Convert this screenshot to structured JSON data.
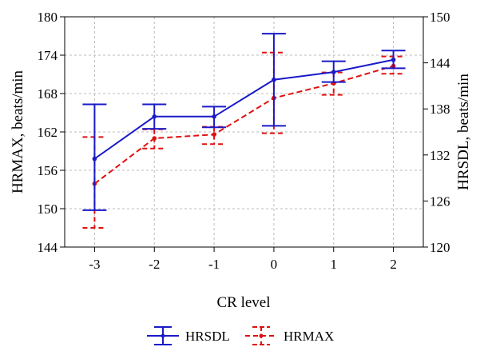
{
  "chart_data": {
    "type": "line",
    "xlabel": "CR level",
    "ylabel_left": "HRMAX, beats/min",
    "ylabel_right": "HRSDL, beats/min",
    "categories": [
      "-3",
      "-2",
      "-1",
      "0",
      "1",
      "2"
    ],
    "y_left": {
      "min": 144,
      "max": 180,
      "ticks": [
        "144",
        "150",
        "156",
        "162",
        "168",
        "174",
        "180"
      ]
    },
    "y_right": {
      "min": 120,
      "max": 150,
      "ticks": [
        "120",
        "126",
        "132",
        "138",
        "144",
        "150"
      ]
    },
    "grid": true,
    "legend_position": "bottom",
    "series": [
      {
        "name": "HRSDL",
        "axis": "right",
        "color": "#1a1ac8",
        "line_style": "solid",
        "values": [
          131.5,
          137.0,
          137.0,
          141.8,
          142.8,
          144.4
        ],
        "lower": [
          124.8,
          135.4,
          135.6,
          135.8,
          141.5,
          143.3
        ],
        "upper": [
          138.6,
          138.6,
          138.3,
          147.8,
          144.2,
          145.6
        ]
      },
      {
        "name": "HRMAX",
        "axis": "left",
        "color": "#e01010",
        "line_style": "dashed",
        "values": [
          153.9,
          161.0,
          161.6,
          167.3,
          169.6,
          172.3
        ],
        "lower": [
          147.0,
          159.4,
          160.1,
          161.8,
          167.8,
          171.1
        ],
        "upper": [
          161.2,
          162.4,
          162.8,
          174.4,
          171.3,
          173.8
        ]
      }
    ]
  }
}
